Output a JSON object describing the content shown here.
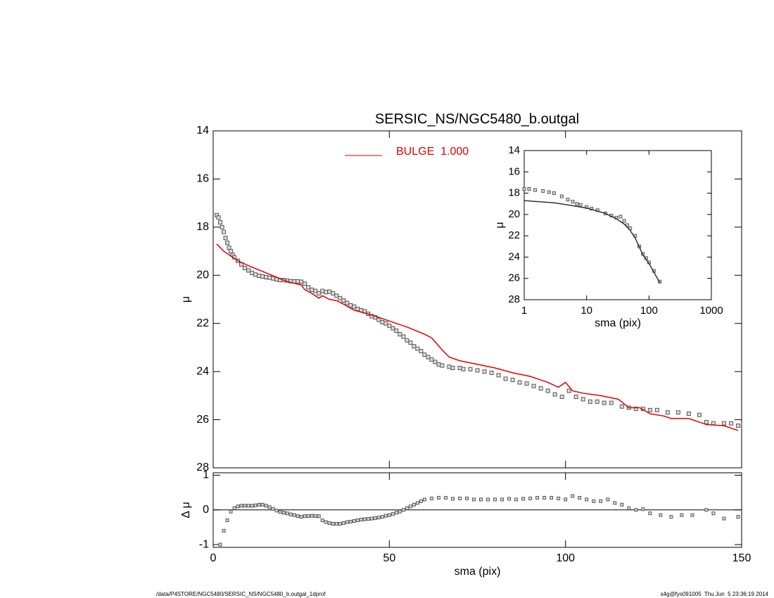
{
  "chart_data": [
    {
      "type": "profile",
      "title": "SERSIC_NS/NGC5480_b.outgal",
      "ylabel": "μ",
      "xlim": [
        0,
        150
      ],
      "ylim": [
        28,
        14
      ],
      "yticks": [
        14,
        16,
        18,
        20,
        22,
        24,
        26,
        28
      ],
      "series": [
        {
          "style": "markers",
          "color": "#555555",
          "x": [
            1,
            1.5,
            2,
            2.5,
            3,
            3.5,
            4,
            4.5,
            5,
            5.5,
            6,
            7,
            8,
            9,
            10,
            11,
            12,
            13,
            14,
            15,
            16,
            17,
            18,
            19,
            20,
            21,
            22,
            23,
            24,
            25,
            26,
            27,
            28,
            29,
            30,
            31,
            32,
            33,
            34,
            35,
            36,
            37,
            38,
            39,
            40,
            41,
            42,
            43,
            44,
            45,
            46,
            47,
            48,
            49,
            50,
            51,
            52,
            53,
            54,
            55,
            56,
            57,
            58,
            59,
            60,
            61,
            62,
            63,
            64,
            65,
            67,
            68,
            70,
            71,
            73,
            75,
            77,
            79,
            81,
            83,
            85,
            87,
            89,
            91,
            93,
            95,
            97,
            99,
            101,
            103,
            105,
            107,
            109,
            111,
            113,
            116,
            118,
            120,
            122,
            124,
            126,
            129,
            132,
            135,
            138,
            140,
            142,
            145,
            147,
            149
          ],
          "values": [
            17.5,
            17.6,
            17.8,
            18.0,
            18.2,
            18.45,
            18.65,
            18.85,
            19.0,
            19.15,
            19.25,
            19.4,
            19.55,
            19.7,
            19.8,
            19.9,
            19.97,
            20.02,
            20.05,
            20.08,
            20.1,
            20.13,
            20.17,
            20.2,
            20.2,
            20.22,
            20.25,
            20.25,
            20.25,
            20.27,
            20.35,
            20.5,
            20.6,
            20.65,
            20.75,
            20.65,
            20.7,
            20.68,
            20.75,
            20.85,
            20.95,
            21.05,
            21.15,
            21.25,
            21.3,
            21.4,
            21.45,
            21.5,
            21.6,
            21.7,
            21.75,
            21.85,
            21.95,
            22.0,
            22.1,
            22.2,
            22.3,
            22.45,
            22.55,
            22.7,
            22.8,
            22.95,
            23.05,
            23.15,
            23.3,
            23.4,
            23.5,
            23.6,
            23.7,
            23.75,
            23.8,
            23.85,
            23.85,
            23.9,
            23.9,
            23.95,
            24.0,
            24.05,
            24.15,
            24.3,
            24.35,
            24.45,
            24.5,
            24.6,
            24.7,
            24.8,
            24.95,
            25.05,
            24.8,
            25.05,
            25.15,
            25.25,
            25.25,
            25.3,
            25.3,
            25.45,
            25.5,
            25.55,
            25.55,
            25.6,
            25.6,
            25.7,
            25.7,
            25.75,
            25.8,
            26.1,
            26.15,
            26.15,
            26.15,
            26.25
          ]
        },
        {
          "name": "BULGE  1.000",
          "style": "line",
          "color": "#e00000",
          "x": [
            1,
            3,
            5,
            7,
            10,
            15,
            20,
            22,
            25,
            26,
            28,
            30,
            31,
            33,
            35,
            37,
            40,
            45,
            50,
            55,
            60,
            62,
            65,
            67,
            70,
            75,
            80,
            85,
            90,
            95,
            98,
            100,
            102,
            105,
            110,
            115,
            118,
            121,
            124,
            128,
            130,
            135,
            137,
            140,
            145,
            149
          ],
          "values": [
            18.7,
            19.0,
            19.2,
            19.4,
            19.6,
            19.9,
            20.2,
            20.3,
            20.4,
            20.6,
            20.75,
            20.95,
            20.85,
            21.0,
            21.05,
            21.2,
            21.45,
            21.65,
            21.9,
            22.15,
            22.45,
            22.6,
            23.1,
            23.4,
            23.55,
            23.7,
            23.85,
            24.05,
            24.2,
            24.45,
            24.65,
            24.45,
            24.8,
            24.9,
            25.0,
            25.15,
            25.5,
            25.5,
            25.75,
            25.85,
            25.95,
            25.95,
            26.05,
            26.2,
            26.25,
            26.45
          ]
        }
      ]
    },
    {
      "type": "scatter",
      "xlabel": "sma (pix)",
      "ylabel": "Δ μ",
      "color": "#555555",
      "xlim": [
        0,
        150
      ],
      "xticks": [
        0,
        50,
        100,
        150
      ],
      "ylim": [
        -1.08,
        1.07
      ],
      "yticks": [
        -1,
        0,
        1
      ],
      "reference_line": 0,
      "x": [
        2,
        3,
        4,
        5,
        6,
        7,
        8,
        9,
        10,
        11,
        12,
        13,
        14,
        15,
        16,
        17,
        18,
        19,
        20,
        21,
        22,
        23,
        24,
        25,
        26,
        27,
        28,
        29,
        30,
        31,
        32,
        33,
        34,
        35,
        36,
        37,
        38,
        39,
        40,
        41,
        42,
        43,
        44,
        45,
        46,
        47,
        48,
        49,
        50,
        51,
        52,
        53,
        54,
        55,
        56,
        57,
        58,
        59,
        60,
        62,
        64,
        66,
        68,
        70,
        72,
        74,
        76,
        78,
        80,
        82,
        84,
        86,
        88,
        90,
        92,
        94,
        96,
        98,
        100,
        102,
        104,
        106,
        108,
        110,
        112,
        114,
        116,
        118,
        120,
        122,
        124,
        127,
        130,
        133,
        136,
        140,
        142,
        145,
        149
      ],
      "values": [
        -1.0,
        -0.6,
        -0.3,
        -0.05,
        0.05,
        0.1,
        0.12,
        0.12,
        0.12,
        0.12,
        0.13,
        0.15,
        0.15,
        0.12,
        0.08,
        0.03,
        -0.02,
        -0.06,
        -0.08,
        -0.1,
        -0.13,
        -0.15,
        -0.18,
        -0.2,
        -0.18,
        -0.18,
        -0.17,
        -0.18,
        -0.18,
        -0.3,
        -0.35,
        -0.38,
        -0.4,
        -0.4,
        -0.4,
        -0.38,
        -0.35,
        -0.34,
        -0.32,
        -0.3,
        -0.28,
        -0.27,
        -0.26,
        -0.25,
        -0.24,
        -0.22,
        -0.2,
        -0.17,
        -0.15,
        -0.12,
        -0.08,
        -0.05,
        0.0,
        0.05,
        0.1,
        0.15,
        0.2,
        0.25,
        0.3,
        0.33,
        0.35,
        0.35,
        0.32,
        0.33,
        0.33,
        0.3,
        0.3,
        0.3,
        0.3,
        0.3,
        0.32,
        0.3,
        0.32,
        0.33,
        0.35,
        0.35,
        0.35,
        0.33,
        0.3,
        0.4,
        0.35,
        0.3,
        0.25,
        0.25,
        0.3,
        0.2,
        0.15,
        0.05,
        0.0,
        0.02,
        -0.1,
        -0.15,
        -0.2,
        -0.15,
        -0.15,
        0.0,
        -0.1,
        -0.25,
        -0.2
      ]
    },
    {
      "type": "profile",
      "xlabel": "sma (pix)",
      "ylabel": "μ",
      "xlog": true,
      "xlim": [
        1,
        1000
      ],
      "xticks": [
        1,
        10,
        100,
        1000
      ],
      "ylim": [
        28,
        14
      ],
      "yticks": [
        14,
        16,
        18,
        20,
        22,
        24,
        26,
        28
      ],
      "series": [
        {
          "style": "markers",
          "color": "#555555",
          "x": [
            1,
            1.2,
            1.5,
            2,
            2.5,
            3,
            4,
            5,
            6,
            7,
            8,
            10,
            12,
            15,
            20,
            25,
            30,
            35,
            40,
            45,
            50,
            60,
            70,
            80,
            90,
            100,
            120,
            149
          ],
          "values": [
            17.6,
            17.6,
            17.7,
            17.8,
            17.9,
            18.0,
            18.3,
            18.6,
            18.8,
            19.0,
            19.1,
            19.3,
            19.45,
            19.6,
            19.9,
            20.1,
            20.3,
            20.2,
            20.6,
            21.0,
            21.3,
            22.0,
            23.0,
            23.7,
            24.1,
            24.5,
            25.3,
            26.3
          ]
        },
        {
          "style": "line",
          "color": "#333333",
          "x": [
            1,
            3,
            5,
            10,
            20,
            30,
            40,
            50,
            60,
            80,
            100,
            149
          ],
          "values": [
            18.7,
            18.9,
            19.1,
            19.4,
            19.9,
            20.4,
            20.9,
            21.5,
            22.2,
            23.8,
            24.6,
            26.4
          ]
        }
      ]
    }
  ],
  "footer": {
    "left": "/data/P4STORE/NGC5480/SERSIC_NS/NGC5480_b.outgal_1dprof",
    "right": "s4g@fys091005  Thu Jun  5 23:36:19 2014"
  }
}
